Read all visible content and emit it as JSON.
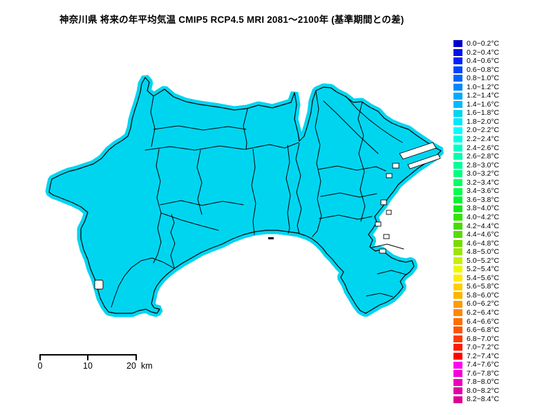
{
  "title": "神奈川県 将来の年平均気温 CMIP5 RCP4.5 MRI 2081～2100年 (基準期間との差)",
  "map": {
    "region": "神奈川県",
    "fill_color": "#00D5F0",
    "border_color": "#000000",
    "water_color": "#FFFFFF",
    "uniform_value_range": "1.6~1.8°C"
  },
  "scalebar": {
    "labels": [
      "0",
      "10",
      "20"
    ],
    "unit": "km"
  },
  "legend": {
    "entries": [
      {
        "label": "0.0~0.2°C",
        "color": "#0000CC"
      },
      {
        "label": "0.2~0.4°C",
        "color": "#0011EE"
      },
      {
        "label": "0.4~0.6°C",
        "color": "#0022FF"
      },
      {
        "label": "0.6~0.8°C",
        "color": "#0044FF"
      },
      {
        "label": "0.8~1.0°C",
        "color": "#0066FF"
      },
      {
        "label": "1.0~1.2°C",
        "color": "#0088FF"
      },
      {
        "label": "1.2~1.4°C",
        "color": "#00AAFF"
      },
      {
        "label": "1.4~1.6°C",
        "color": "#00BBFF"
      },
      {
        "label": "1.6~1.8°C",
        "color": "#00D5F0"
      },
      {
        "label": "1.8~2.0°C",
        "color": "#00E8FF"
      },
      {
        "label": "2.0~2.2°C",
        "color": "#00FFFF"
      },
      {
        "label": "2.2~2.4°C",
        "color": "#00FFE0"
      },
      {
        "label": "2.4~2.6°C",
        "color": "#00FFC8"
      },
      {
        "label": "2.6~2.8°C",
        "color": "#00FFAE"
      },
      {
        "label": "2.8~3.0°C",
        "color": "#00FF96"
      },
      {
        "label": "3.0~3.2°C",
        "color": "#00FF7D"
      },
      {
        "label": "3.2~3.4°C",
        "color": "#00FF64"
      },
      {
        "label": "3.4~3.6°C",
        "color": "#00FF4B"
      },
      {
        "label": "3.6~3.8°C",
        "color": "#00F532"
      },
      {
        "label": "3.8~4.0°C",
        "color": "#14EB14"
      },
      {
        "label": "4.0~4.2°C",
        "color": "#32E600"
      },
      {
        "label": "4.2~4.4°C",
        "color": "#46DC00"
      },
      {
        "label": "4.4~4.6°C",
        "color": "#5ADC00"
      },
      {
        "label": "4.6~4.8°C",
        "color": "#78DC00"
      },
      {
        "label": "4.8~5.0°C",
        "color": "#9BE600"
      },
      {
        "label": "5.0~5.2°C",
        "color": "#C8F000"
      },
      {
        "label": "5.2~5.4°C",
        "color": "#EBFA00"
      },
      {
        "label": "5.4~5.6°C",
        "color": "#FFEB00"
      },
      {
        "label": "5.6~5.8°C",
        "color": "#FFCD00"
      },
      {
        "label": "5.8~6.0°C",
        "color": "#FFB400"
      },
      {
        "label": "6.0~6.2°C",
        "color": "#FF9B00"
      },
      {
        "label": "6.2~6.4°C",
        "color": "#FF8700"
      },
      {
        "label": "6.4~6.6°C",
        "color": "#FF6E00"
      },
      {
        "label": "6.6~6.8°C",
        "color": "#FF5500"
      },
      {
        "label": "6.8~7.0°C",
        "color": "#FF3C00"
      },
      {
        "label": "7.0~7.2°C",
        "color": "#FF1E00"
      },
      {
        "label": "7.2~7.4°C",
        "color": "#FF0000"
      },
      {
        "label": "7.4~7.6°C",
        "color": "#FF00F0"
      },
      {
        "label": "7.6~7.8°C",
        "color": "#F500D7"
      },
      {
        "label": "7.8~8.0°C",
        "color": "#EB00BE"
      },
      {
        "label": "8.0~8.2°C",
        "color": "#E100A5"
      },
      {
        "label": "8.2~8.4°C",
        "color": "#DC0091"
      }
    ]
  }
}
